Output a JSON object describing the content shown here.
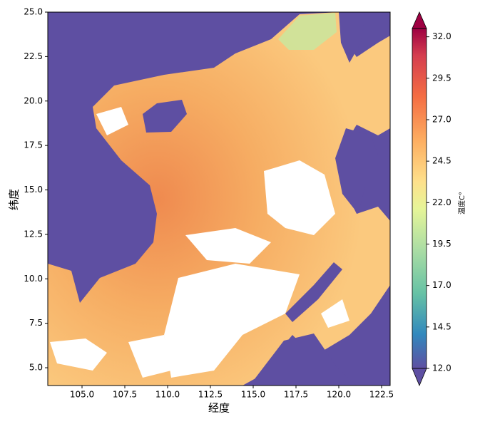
{
  "chart_data": {
    "type": "map",
    "xlabel": "经度",
    "ylabel": "纬度",
    "colorbar_label": "温度C°",
    "xlim": [
      103,
      123
    ],
    "ylim": [
      4,
      25
    ],
    "xticks": [
      {
        "value": 105,
        "label": "105.0"
      },
      {
        "value": 107.5,
        "label": "107.5"
      },
      {
        "value": 110,
        "label": "110.0"
      },
      {
        "value": 112.5,
        "label": "112.5"
      },
      {
        "value": 115,
        "label": "115.0"
      },
      {
        "value": 117.5,
        "label": "117.5"
      },
      {
        "value": 120,
        "label": "120.0"
      },
      {
        "value": 122.5,
        "label": "122.5"
      }
    ],
    "yticks": [
      {
        "value": 5,
        "label": "5.0"
      },
      {
        "value": 7.5,
        "label": "7.5"
      },
      {
        "value": 10,
        "label": "10.0"
      },
      {
        "value": 12.5,
        "label": "12.5"
      },
      {
        "value": 15,
        "label": "15.0"
      },
      {
        "value": 17.5,
        "label": "17.5"
      },
      {
        "value": 20,
        "label": "20.0"
      },
      {
        "value": 22.5,
        "label": "22.5"
      },
      {
        "value": 25,
        "label": "25.0"
      }
    ],
    "clim": [
      12,
      32.5
    ],
    "cticks": [
      {
        "value": 12,
        "label": "12.0"
      },
      {
        "value": 14.5,
        "label": "14.5"
      },
      {
        "value": 17,
        "label": "17.0"
      },
      {
        "value": 19.5,
        "label": "19.5"
      },
      {
        "value": 22,
        "label": "22.0"
      },
      {
        "value": 24.5,
        "label": "24.5"
      },
      {
        "value": 27,
        "label": "27.0"
      },
      {
        "value": 29.5,
        "label": "29.5"
      },
      {
        "value": 32,
        "label": "32.0"
      }
    ]
  }
}
